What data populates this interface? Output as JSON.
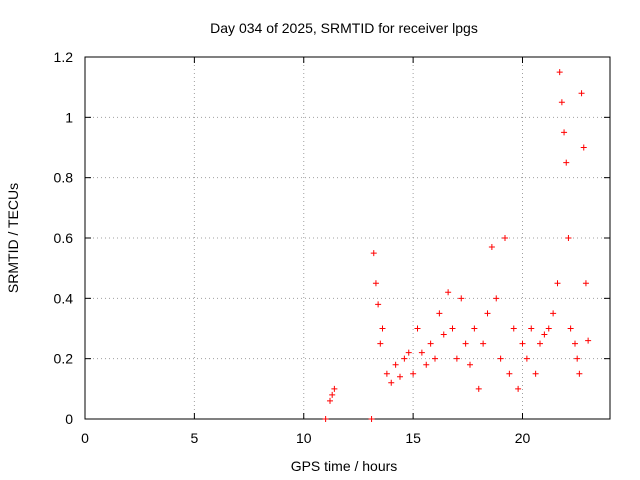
{
  "chart_data": {
    "type": "scatter",
    "title": "Day 034 of 2025, SRMTID for receiver lpgs",
    "xlabel": "GPS time / hours",
    "ylabel": "SRMTID / TECUs",
    "xlim": [
      0,
      24
    ],
    "ylim": [
      0,
      1.2
    ],
    "x_ticks": [
      "0",
      "5",
      "10",
      "15",
      "20"
    ],
    "y_ticks": [
      "0",
      "0.2",
      "0.4",
      "0.6",
      "0.8",
      "1",
      "1.2"
    ],
    "grid": true,
    "marker": "+",
    "marker_color": "#ff0000",
    "series": [
      {
        "name": "SRMTID",
        "x": [
          11.0,
          11.2,
          11.3,
          11.4,
          13.1,
          13.2,
          13.3,
          13.4,
          13.5,
          13.6,
          13.8,
          14.0,
          14.2,
          14.4,
          14.6,
          14.8,
          15.0,
          15.2,
          15.4,
          15.6,
          15.8,
          16.0,
          16.2,
          16.4,
          16.6,
          16.8,
          17.0,
          17.2,
          17.4,
          17.6,
          17.8,
          18.0,
          18.2,
          18.4,
          18.6,
          18.8,
          19.0,
          19.2,
          19.4,
          19.6,
          19.8,
          20.0,
          20.2,
          20.4,
          20.6,
          20.8,
          21.0,
          21.2,
          21.4,
          21.6,
          21.7,
          21.8,
          21.9,
          22.0,
          22.1,
          22.2,
          22.4,
          22.5,
          22.6,
          22.7,
          22.8,
          22.9,
          23.0
        ],
        "y": [
          0.0,
          0.06,
          0.08,
          0.1,
          0.0,
          0.55,
          0.45,
          0.38,
          0.25,
          0.3,
          0.15,
          0.12,
          0.18,
          0.14,
          0.2,
          0.22,
          0.15,
          0.3,
          0.22,
          0.18,
          0.25,
          0.2,
          0.35,
          0.28,
          0.42,
          0.3,
          0.2,
          0.4,
          0.25,
          0.18,
          0.3,
          0.1,
          0.25,
          0.35,
          0.57,
          0.4,
          0.2,
          0.6,
          0.15,
          0.3,
          0.1,
          0.25,
          0.2,
          0.3,
          0.15,
          0.25,
          0.28,
          0.3,
          0.35,
          0.45,
          1.15,
          1.05,
          0.95,
          0.85,
          0.6,
          0.3,
          0.25,
          0.2,
          0.15,
          1.08,
          0.9,
          0.45,
          0.26
        ]
      }
    ]
  }
}
